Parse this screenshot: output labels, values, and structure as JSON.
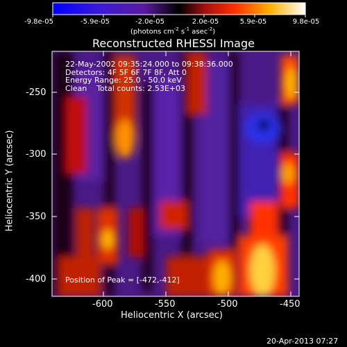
{
  "colorbar": {
    "ticks": [
      "-9.8e-05",
      "-5.9e-05",
      "-2.0e-05",
      "2.0e-05",
      "5.9e-05",
      "9.8e-05"
    ],
    "units_parts": {
      "a": "(photons cm",
      "b": "-2",
      "c": " s",
      "d": "-1",
      "e": " asec",
      "f": "-2",
      "g": ")"
    }
  },
  "title": "Reconstructed RHESSI Image",
  "info": {
    "line1": "22-May-2002 09:35:24.000 to 09:38:36.000",
    "line2": "Detectors: 4F 5F 6F 7F 8F, Att 0",
    "line3": "Energy Range: 25.0 - 50.0 keV",
    "line4": "Clean    Total counts: 2.53E+03"
  },
  "peak_label": "Position of Peak = [-472,-412]",
  "x_axis": {
    "label": "Heliocentric X (arcsec)",
    "ticks": [
      "-600",
      "-550",
      "-500",
      "-450"
    ]
  },
  "y_axis": {
    "label": "Heliocentric Y (arcsec)",
    "ticks": [
      "-250",
      "-300",
      "-350",
      "-400"
    ]
  },
  "timestamp": "20-Apr-2013 07:27",
  "colors": {
    "background": "#000000",
    "axis": "#ffffff"
  }
}
